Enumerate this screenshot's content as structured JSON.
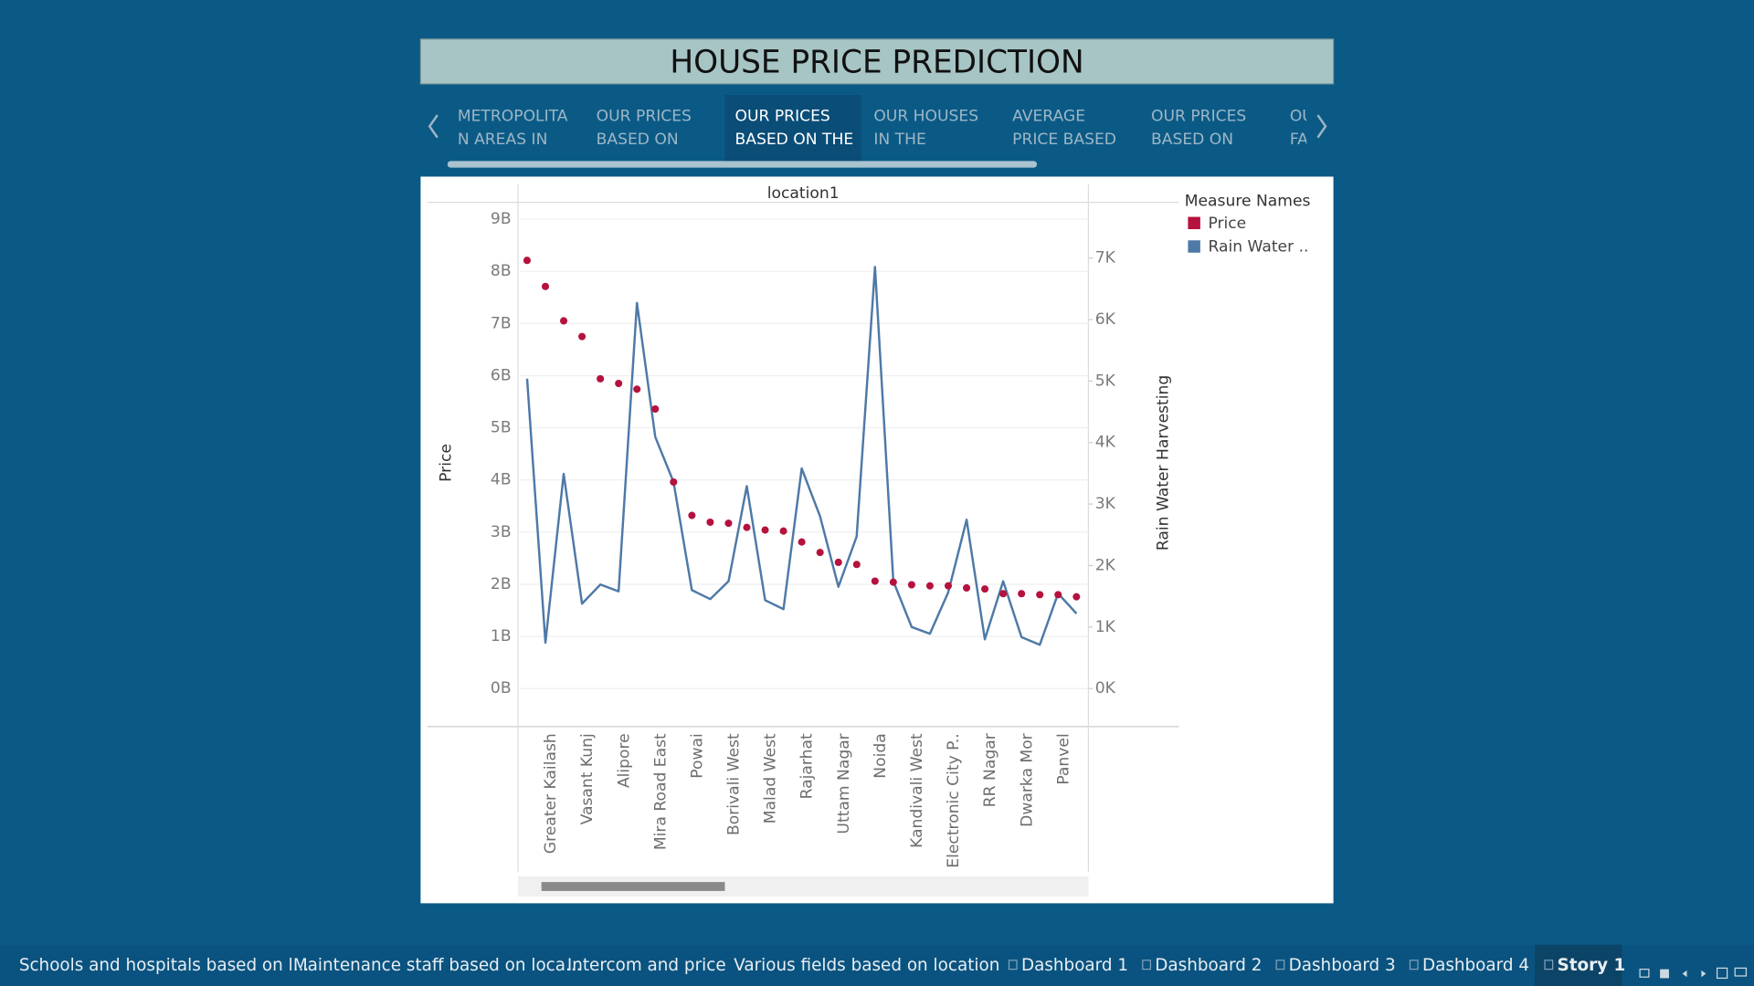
{
  "header": {
    "title": "HOUSE PRICE PREDICTION"
  },
  "story_points": [
    [
      "METROPOLITA",
      "N AREAS IN"
    ],
    [
      "OUR PRICES",
      "BASED ON"
    ],
    [
      "OUR PRICES",
      "BASED ON THE"
    ],
    [
      "OUR HOUSES",
      "IN THE"
    ],
    [
      "AVERAGE",
      "PRICE BASED"
    ],
    [
      "OUR PRICES",
      "BASED ON"
    ],
    [
      "OU",
      "FA"
    ]
  ],
  "sheet_tabs": [
    "Schools and hospitals based on l...",
    "Maintenance staff based on loca...",
    "Intercom and price",
    "Various fields based on location"
  ],
  "dashboard_tabs": [
    "Dashboard 1",
    "Dashboard 2",
    "Dashboard 3",
    "Dashboard 4"
  ],
  "story_tabs": [
    "Story 1"
  ],
  "chart_data": {
    "type": "line",
    "column_header": "location1",
    "categories": [
      null,
      "Greater Kailash",
      null,
      "Vasant Kunj",
      null,
      "Alipore",
      null,
      "Mira Road East",
      null,
      "Powai",
      null,
      "Borivali West",
      null,
      "Malad West",
      null,
      "Rajarhat",
      null,
      "Uttam Nagar",
      null,
      "Noida",
      null,
      "Kandivali West",
      null,
      "Electronic City P..",
      null,
      "RR Nagar",
      null,
      "Dwarka Mor",
      null,
      "Panvel",
      null
    ],
    "series": [
      {
        "name": "Price",
        "color": "#b5123e",
        "mark": "circle",
        "axis": "y",
        "values": [
          8210000000,
          7710000000,
          7050000000,
          6750000000,
          5940000000,
          5850000000,
          5740000000,
          5360000000,
          3960000000,
          3320000000,
          3190000000,
          3170000000,
          3090000000,
          3040000000,
          3020000000,
          2810000000,
          2610000000,
          2420000000,
          2380000000,
          2060000000,
          2040000000,
          1990000000,
          1970000000,
          1970000000,
          1930000000,
          1910000000,
          1820000000,
          1820000000,
          1800000000,
          1800000000,
          1760000000
        ]
      },
      {
        "name": "Rain Water ..",
        "color": "#4e79a7",
        "mark": "line",
        "axis": "y2",
        "values": [
          5040,
          745,
          3490,
          1380,
          1690,
          1580,
          6270,
          4090,
          3360,
          1600,
          1455,
          1745,
          3290,
          1436,
          1290,
          3580,
          2800,
          1655,
          2470,
          6855,
          1745,
          1000,
          890,
          1565,
          2745,
          800,
          1745,
          836,
          710,
          1545,
          1220
        ]
      }
    ],
    "ylabel": "Price",
    "y2label": "Rain Water Harvesting",
    "legend_title": "Measure Names",
    "ylim": [
      -730000000,
      9280000000
    ],
    "yticks": [
      {
        "value": 0,
        "label": "0B"
      },
      {
        "value": 1000000000,
        "label": "1B"
      },
      {
        "value": 2000000000,
        "label": "2B"
      },
      {
        "value": 3000000000,
        "label": "3B"
      },
      {
        "value": 4000000000,
        "label": "4B"
      },
      {
        "value": 5000000000,
        "label": "5B"
      },
      {
        "value": 6000000000,
        "label": "6B"
      },
      {
        "value": 7000000000,
        "label": "7B"
      },
      {
        "value": 8000000000,
        "label": "8B"
      },
      {
        "value": 9000000000,
        "label": "9B"
      }
    ],
    "y2lim": [
      -620,
      7870
    ],
    "y2ticks": [
      {
        "value": 0,
        "label": "0K"
      },
      {
        "value": 1000,
        "label": "1K"
      },
      {
        "value": 2000,
        "label": "2K"
      },
      {
        "value": 3000,
        "label": "3K"
      },
      {
        "value": 4000,
        "label": "4K"
      },
      {
        "value": 5000,
        "label": "5K"
      },
      {
        "value": 6000,
        "label": "6K"
      },
      {
        "value": 7000,
        "label": "7K"
      }
    ],
    "grid": true
  }
}
